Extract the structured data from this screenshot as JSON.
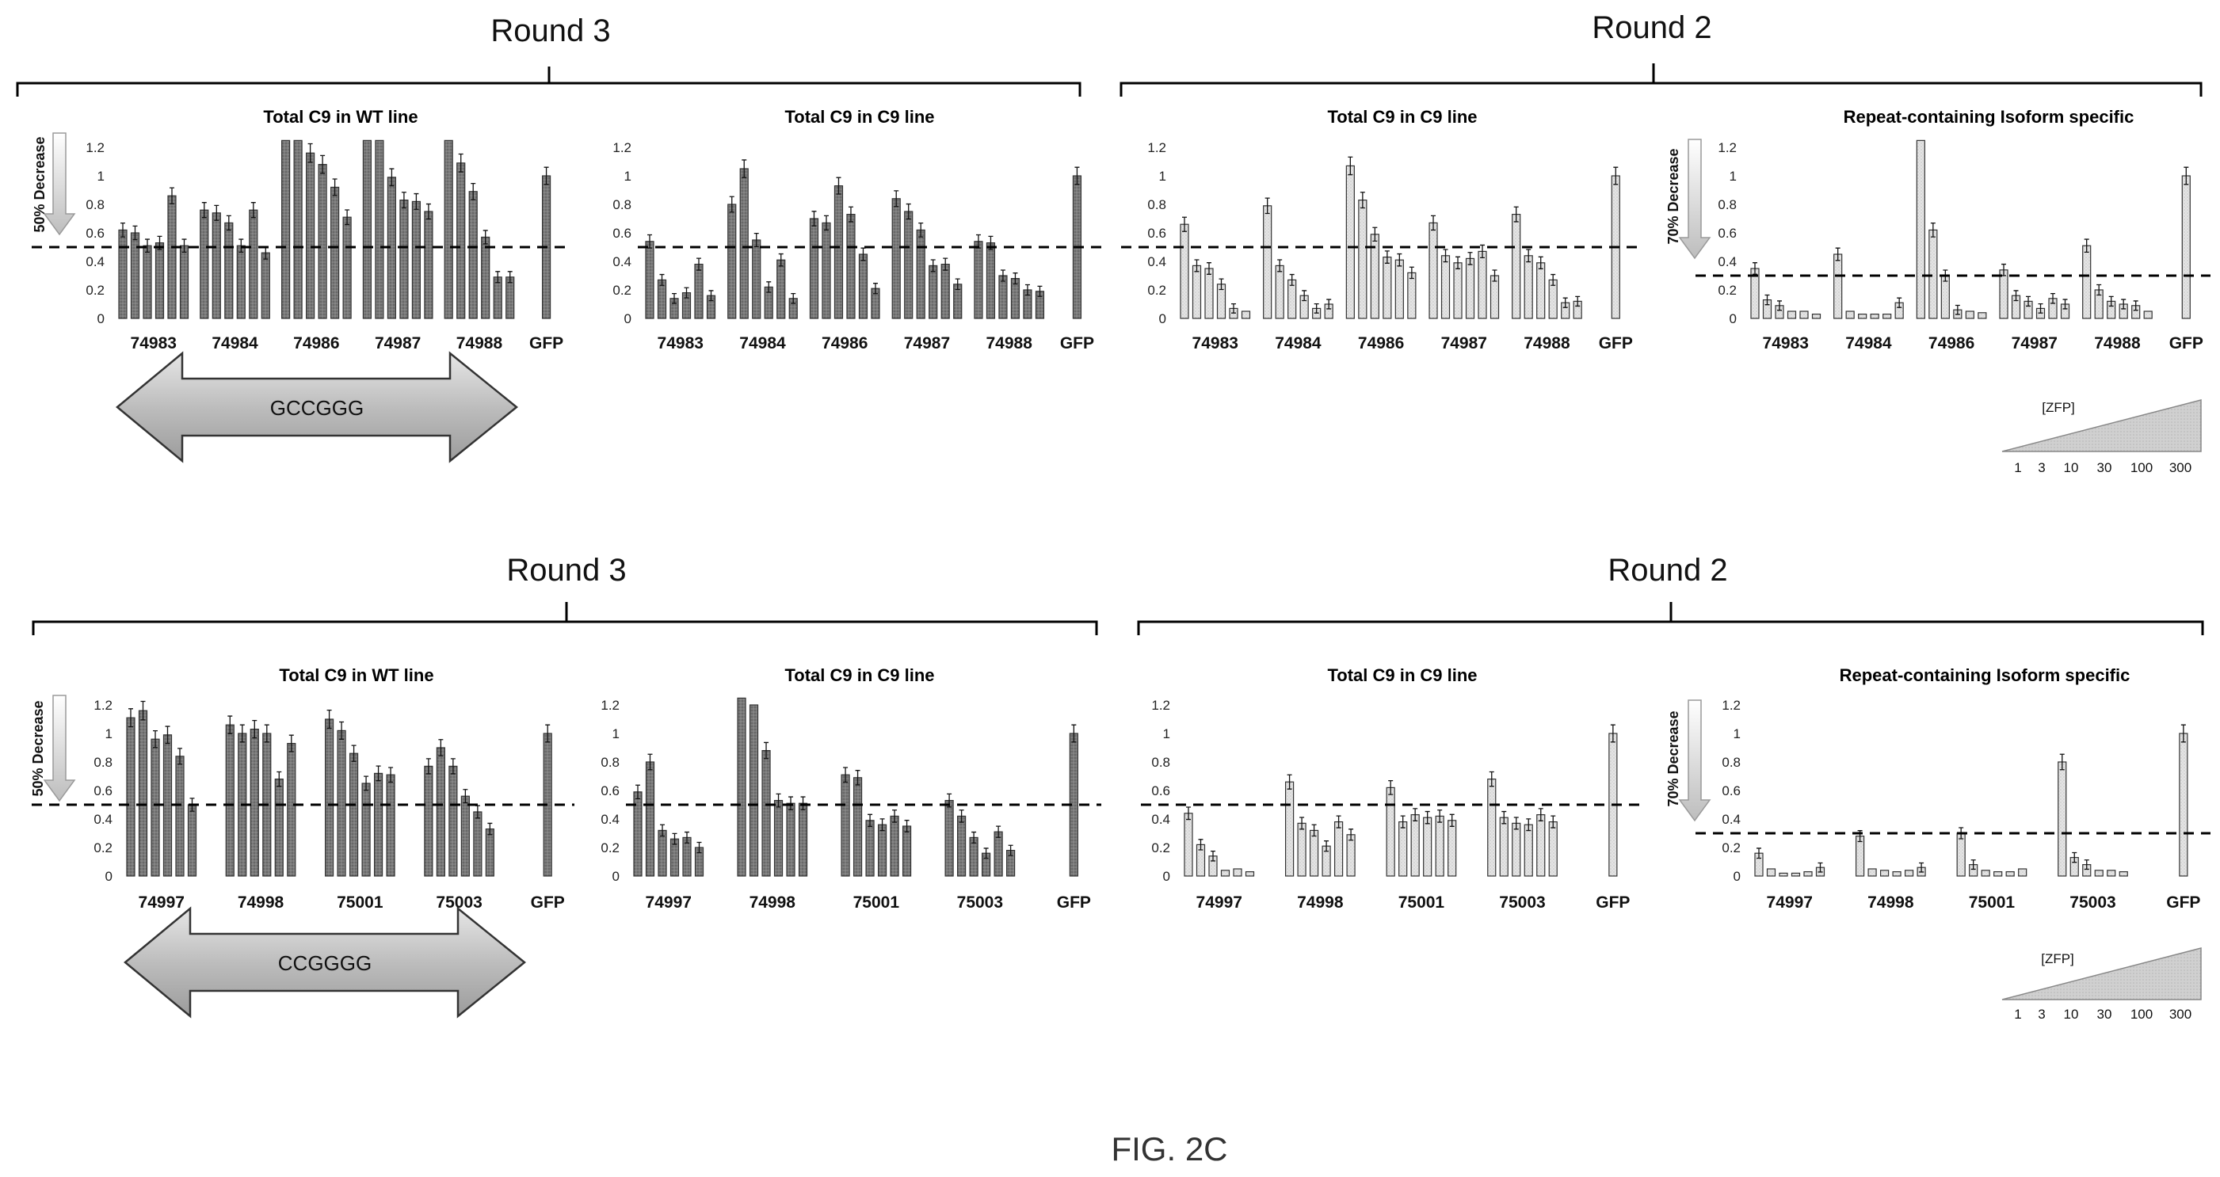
{
  "figure_label": "FIG. 2C",
  "rows": [
    {
      "round_left": "Round 3",
      "round_right": "Round 2",
      "arrow_text": "GCCGGG",
      "decrease_labels": [
        "50% Decrease",
        "70% Decrease"
      ],
      "zfp_label": "[ZFP]",
      "zfp_ticks": [
        "1",
        "3",
        "10",
        "30",
        "100",
        "300"
      ]
    },
    {
      "round_left": "Round 3",
      "round_right": "Round 2",
      "arrow_text": "CCGGGG",
      "decrease_labels": [
        "50% Decrease",
        "70% Decrease"
      ],
      "zfp_label": "[ZFP]",
      "zfp_ticks": [
        "1",
        "3",
        "10",
        "30",
        "100",
        "300"
      ]
    }
  ],
  "colors": {
    "dark_bar": "#777777",
    "light_bar": "#d9d9d9",
    "line": "#000000"
  },
  "chart_data": [
    {
      "type": "bar",
      "title": "Total C9 in WT line",
      "ylim": [
        0,
        1.2
      ],
      "yticks": [
        "0",
        "0.2",
        "0.4",
        "0.6",
        "0.8",
        "1",
        "1.2"
      ],
      "threshold": 0.5,
      "categories": [
        "74983",
        "74984",
        "74986",
        "74987",
        "74988",
        "GFP"
      ],
      "values": [
        [
          0.62,
          0.6,
          0.51,
          0.53,
          0.86,
          0.51
        ],
        [
          0.76,
          0.74,
          0.67,
          0.51,
          0.76,
          0.46
        ],
        [
          1.25,
          1.25,
          1.16,
          1.08,
          0.92,
          0.71
        ],
        [
          1.25,
          1.25,
          0.99,
          0.83,
          0.82,
          0.75
        ],
        [
          1.25,
          1.09,
          0.89,
          0.57,
          0.29,
          0.29
        ],
        [
          1.0
        ]
      ]
    },
    {
      "type": "bar",
      "title": "Total C9 in C9 line",
      "ylim": [
        0,
        1.2
      ],
      "yticks": [
        "0",
        "0.2",
        "0.4",
        "0.6",
        "0.8",
        "1",
        "1.2"
      ],
      "threshold": 0.5,
      "categories": [
        "74983",
        "74984",
        "74986",
        "74987",
        "74988",
        "GFP"
      ],
      "values": [
        [
          0.54,
          0.27,
          0.14,
          0.18,
          0.38,
          0.16
        ],
        [
          0.8,
          1.05,
          0.55,
          0.22,
          0.41,
          0.14
        ],
        [
          0.7,
          0.67,
          0.93,
          0.73,
          0.45,
          0.21
        ],
        [
          0.84,
          0.75,
          0.62,
          0.37,
          0.38,
          0.24
        ],
        [
          0.54,
          0.53,
          0.3,
          0.28,
          0.2,
          0.19
        ],
        [
          1.0
        ]
      ]
    },
    {
      "type": "bar",
      "title": "Total C9 in C9 line",
      "ylim": [
        0,
        1.2
      ],
      "yticks": [
        "0",
        "0.2",
        "0.4",
        "0.6",
        "0.8",
        "1",
        "1.2"
      ],
      "threshold": 0.5,
      "categories": [
        "74983",
        "74984",
        "74986",
        "74987",
        "74988",
        "GFP"
      ],
      "values": [
        [
          0.66,
          0.37,
          0.35,
          0.24,
          0.07,
          0.05
        ],
        [
          0.79,
          0.37,
          0.27,
          0.16,
          0.07,
          0.1
        ],
        [
          1.07,
          0.83,
          0.59,
          0.43,
          0.41,
          0.32
        ],
        [
          0.67,
          0.44,
          0.39,
          0.42,
          0.47,
          0.3
        ],
        [
          0.73,
          0.44,
          0.39,
          0.27,
          0.11,
          0.12
        ],
        [
          1.0
        ]
      ]
    },
    {
      "type": "bar",
      "title": "Repeat-containing Isoform specific",
      "ylim": [
        0,
        1.2
      ],
      "yticks": [
        "0",
        "0.2",
        "0.4",
        "0.6",
        "0.8",
        "1",
        "1.2"
      ],
      "threshold": 0.3,
      "categories": [
        "74983",
        "74984",
        "74986",
        "74987",
        "74988",
        "GFP"
      ],
      "values": [
        [
          0.35,
          0.13,
          0.09,
          0.05,
          0.05,
          0.03
        ],
        [
          0.45,
          0.05,
          0.03,
          0.03,
          0.03,
          0.11
        ],
        [
          1.25,
          0.62,
          0.3,
          0.06,
          0.05,
          0.04
        ],
        [
          0.34,
          0.16,
          0.12,
          0.07,
          0.14,
          0.1
        ],
        [
          0.51,
          0.2,
          0.12,
          0.1,
          0.09,
          0.05
        ],
        [
          1.0
        ]
      ]
    },
    {
      "type": "bar",
      "title": "Total C9 in WT line",
      "ylim": [
        0,
        1.2
      ],
      "yticks": [
        "0",
        "0.2",
        "0.4",
        "0.6",
        "0.8",
        "1",
        "1.2"
      ],
      "threshold": 0.5,
      "categories": [
        "74997",
        "74998",
        "75001",
        "75003",
        "GFP"
      ],
      "values": [
        [
          1.11,
          1.16,
          0.96,
          0.99,
          0.84,
          0.5
        ],
        [
          1.06,
          1.0,
          1.03,
          1.0,
          0.68,
          0.93
        ],
        [
          1.1,
          1.02,
          0.86,
          0.65,
          0.72,
          0.71
        ],
        [
          0.77,
          0.9,
          0.77,
          0.56,
          0.45,
          0.33
        ],
        [
          1.0
        ]
      ]
    },
    {
      "type": "bar",
      "title": "Total C9 in C9 line",
      "ylim": [
        0,
        1.2
      ],
      "yticks": [
        "0",
        "0.2",
        "0.4",
        "0.6",
        "0.8",
        "1",
        "1.2"
      ],
      "threshold": 0.5,
      "categories": [
        "74997",
        "74998",
        "75001",
        "75003",
        "GFP"
      ],
      "values": [
        [
          0.59,
          0.8,
          0.32,
          0.26,
          0.27,
          0.2
        ],
        [
          1.25,
          1.2,
          0.88,
          0.53,
          0.51,
          0.51
        ],
        [
          0.71,
          0.69,
          0.39,
          0.36,
          0.42,
          0.35
        ],
        [
          0.53,
          0.42,
          0.27,
          0.16,
          0.31,
          0.18
        ],
        [
          1.0
        ]
      ]
    },
    {
      "type": "bar",
      "title": "Total C9 in C9 line",
      "ylim": [
        0,
        1.2
      ],
      "yticks": [
        "0",
        "0.2",
        "0.4",
        "0.6",
        "0.8",
        "1",
        "1.2"
      ],
      "threshold": 0.5,
      "categories": [
        "74997",
        "74998",
        "75001",
        "75003",
        "GFP"
      ],
      "values": [
        [
          0.44,
          0.22,
          0.14,
          0.04,
          0.05,
          0.03
        ],
        [
          0.66,
          0.37,
          0.32,
          0.21,
          0.38,
          0.29
        ],
        [
          0.62,
          0.38,
          0.43,
          0.41,
          0.42,
          0.39
        ],
        [
          0.68,
          0.41,
          0.37,
          0.36,
          0.43,
          0.38
        ],
        [
          1.0
        ]
      ]
    },
    {
      "type": "bar",
      "title": "Repeat-containing Isoform specific",
      "ylim": [
        0,
        1.2
      ],
      "yticks": [
        "0",
        "0.2",
        "0.4",
        "0.6",
        "0.8",
        "1",
        "1.2"
      ],
      "threshold": 0.3,
      "categories": [
        "74997",
        "74998",
        "75001",
        "75003",
        "GFP"
      ],
      "values": [
        [
          0.16,
          0.05,
          0.02,
          0.02,
          0.03,
          0.06
        ],
        [
          0.28,
          0.05,
          0.04,
          0.03,
          0.04,
          0.06
        ],
        [
          0.3,
          0.08,
          0.04,
          0.03,
          0.03,
          0.05
        ],
        [
          0.8,
          0.13,
          0.08,
          0.04,
          0.04,
          0.03
        ],
        [
          1.0
        ]
      ]
    }
  ]
}
